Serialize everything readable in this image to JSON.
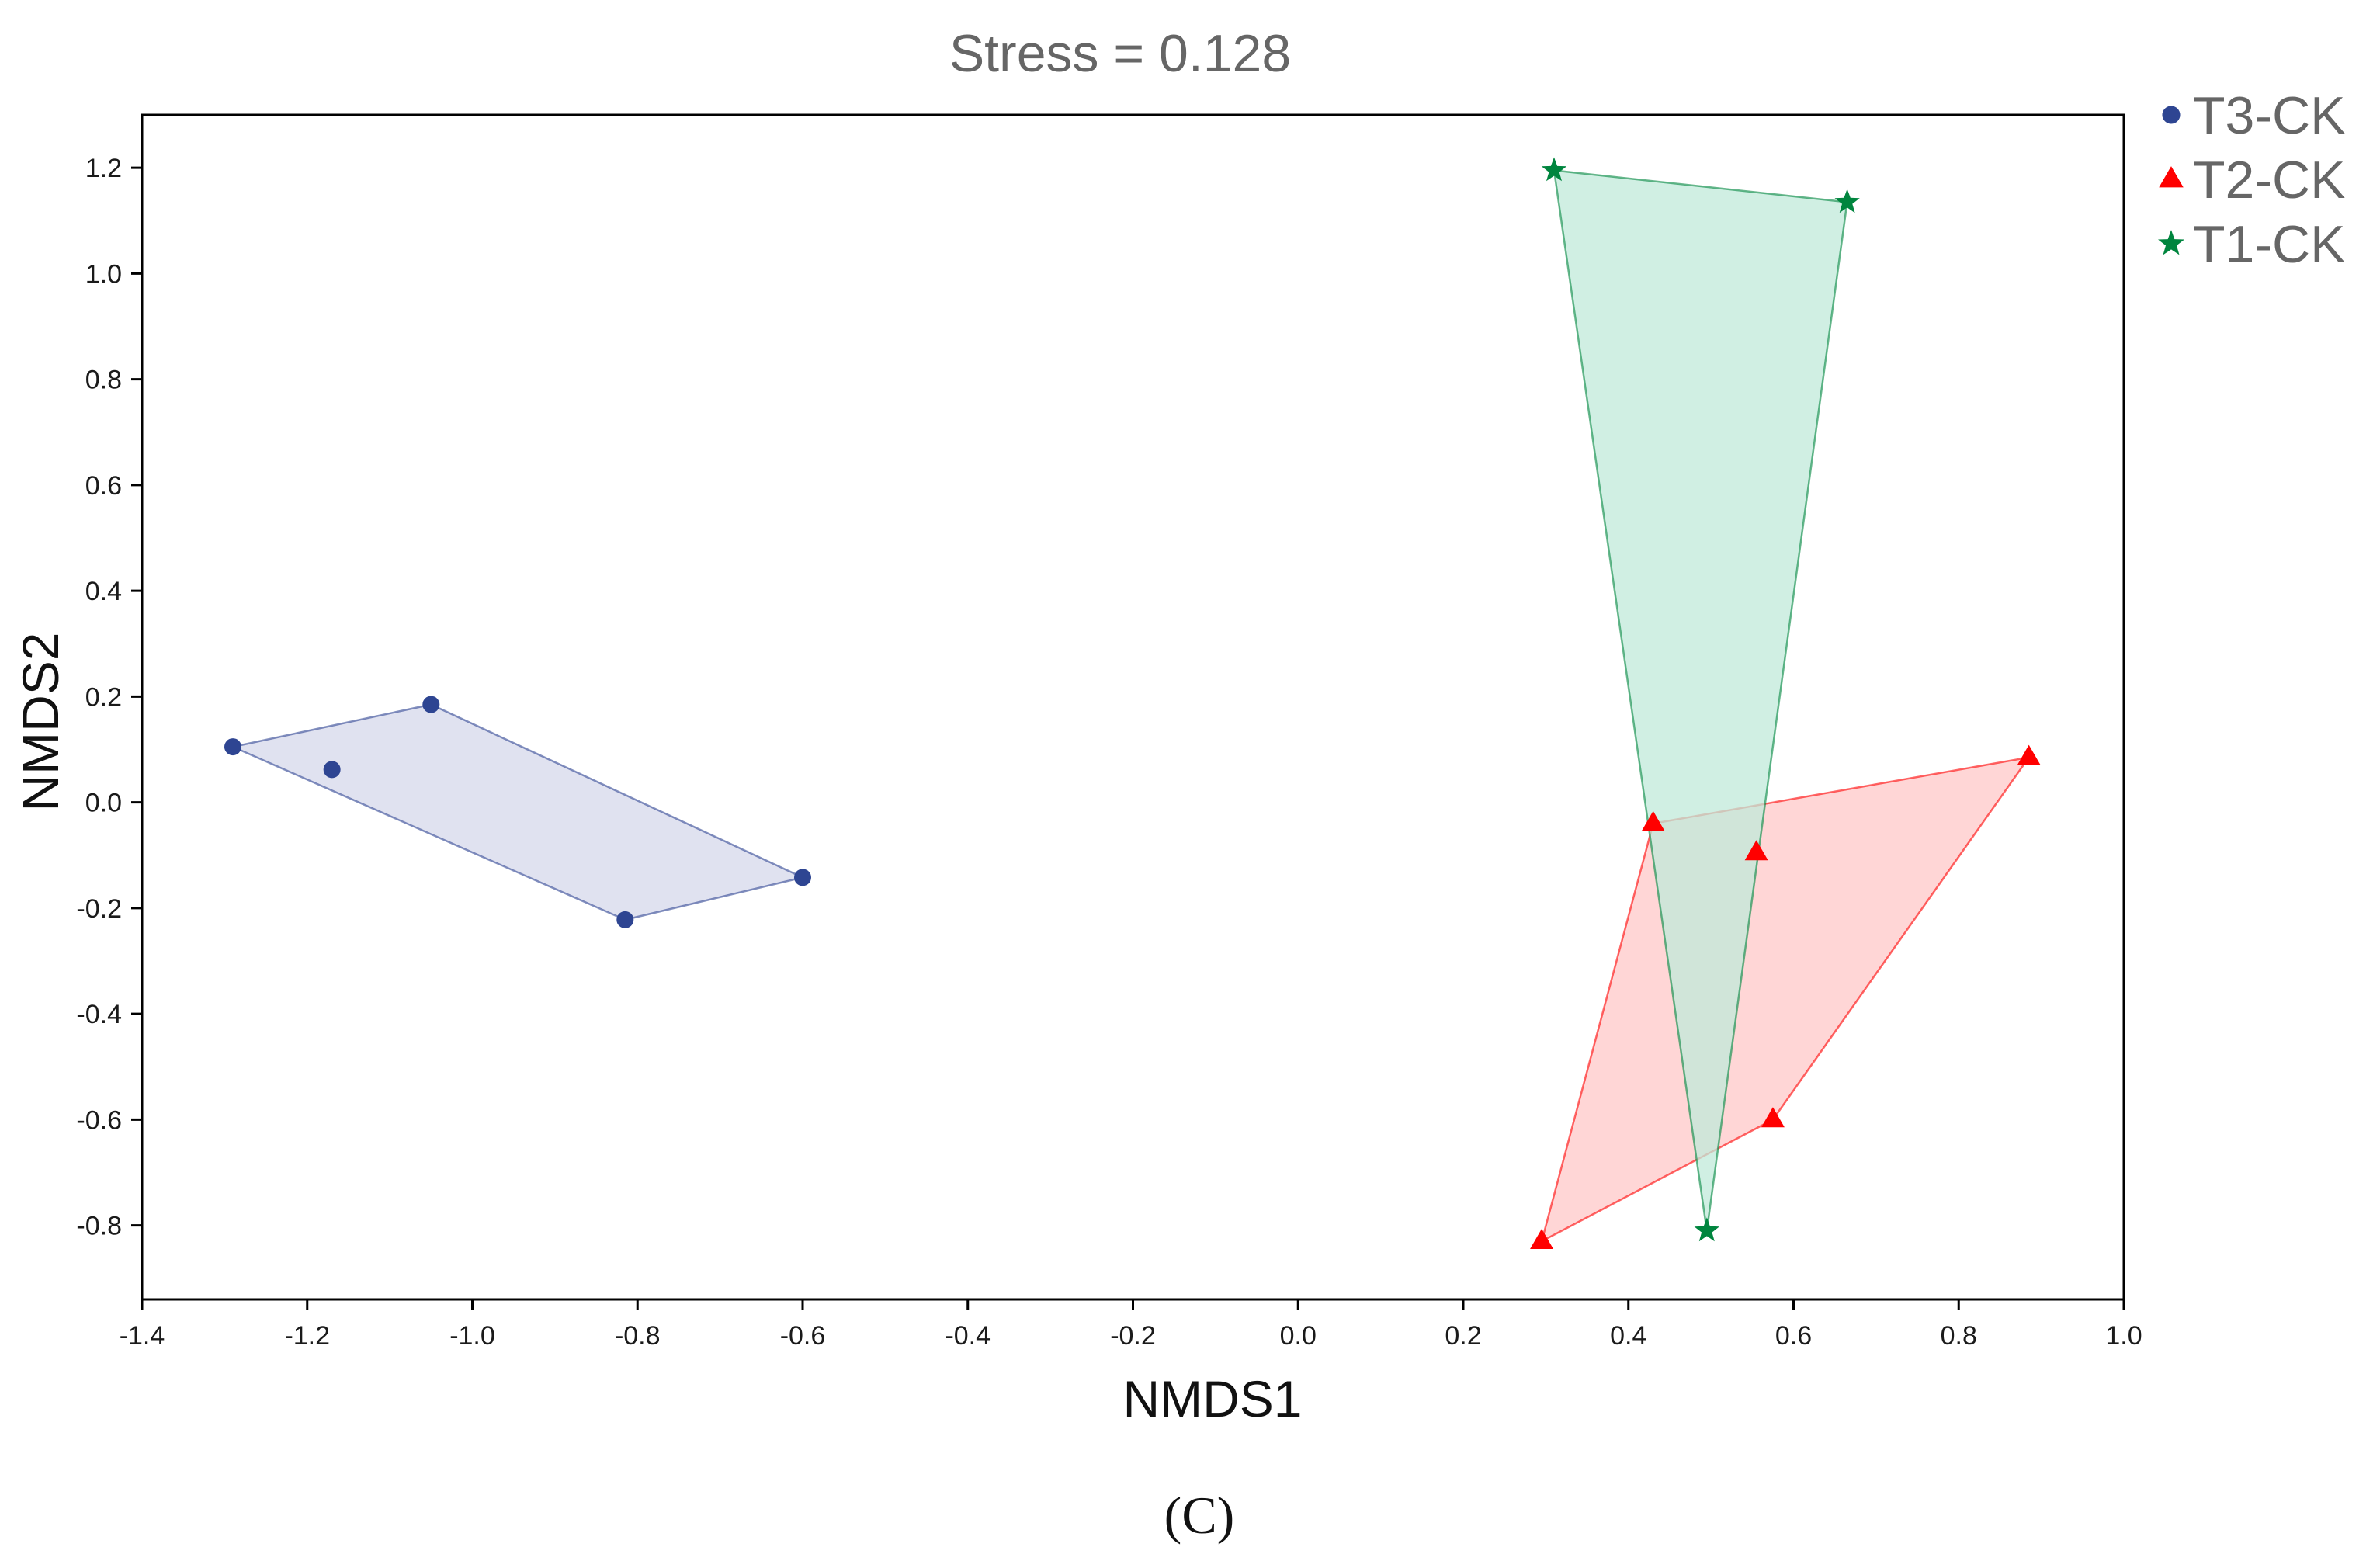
{
  "chart_data": {
    "type": "scatter",
    "title": "Stress = 0.128",
    "xlabel": "NMDS1",
    "ylabel": "NMDS2",
    "xlim": [
      -1.4,
      1.0
    ],
    "ylim": [
      -0.94,
      1.3
    ],
    "xticks": [
      -1.4,
      -1.2,
      -1.0,
      -0.8,
      -0.6,
      -0.4,
      -0.2,
      0.0,
      0.2,
      0.4,
      0.6,
      0.8,
      1.0
    ],
    "xtick_labels": [
      "-1.4",
      "-1.2",
      "-1.0",
      "-0.8",
      "-0.6",
      "-0.4",
      "-0.2",
      "0.0",
      "0.2",
      "0.4",
      "0.6",
      "0.8",
      "1.0"
    ],
    "yticks": [
      -0.8,
      -0.6,
      -0.4,
      -0.2,
      0.0,
      0.2,
      0.4,
      0.6,
      0.8,
      1.0,
      1.2
    ],
    "ytick_labels": [
      "-0.8",
      "-0.6",
      "-0.4",
      "-0.2",
      "0.0",
      "0.2",
      "0.4",
      "0.6",
      "0.8",
      "1.0",
      "1.2"
    ],
    "grid": false,
    "legend_position": "top-right outside",
    "series": [
      {
        "name": "T3-CK",
        "marker": "circle",
        "color": "#2E4592",
        "fill": "#D6D8EB",
        "points": [
          [
            -1.29,
            0.105
          ],
          [
            -1.17,
            0.062
          ],
          [
            -1.05,
            0.185
          ],
          [
            -0.6,
            -0.142
          ],
          [
            -0.815,
            -0.222
          ]
        ],
        "hull": [
          [
            -1.29,
            0.105
          ],
          [
            -1.05,
            0.185
          ],
          [
            -0.6,
            -0.142
          ],
          [
            -0.815,
            -0.222
          ]
        ]
      },
      {
        "name": "T2-CK",
        "marker": "triangle",
        "color": "#FF0000",
        "fill": "#FFC8C8",
        "points": [
          [
            0.885,
            0.085
          ],
          [
            0.43,
            -0.04
          ],
          [
            0.555,
            -0.095
          ],
          [
            0.575,
            -0.6
          ],
          [
            0.295,
            -0.83
          ]
        ],
        "hull": [
          [
            0.885,
            0.085
          ],
          [
            0.43,
            -0.04
          ],
          [
            0.295,
            -0.83
          ],
          [
            0.575,
            -0.6
          ]
        ]
      },
      {
        "name": "T1-CK",
        "marker": "star",
        "color": "#00853E",
        "fill": "#C0E9DA",
        "points": [
          [
            0.31,
            1.195
          ],
          [
            0.665,
            1.135
          ],
          [
            0.495,
            -0.81
          ]
        ],
        "hull": [
          [
            0.31,
            1.195
          ],
          [
            0.665,
            1.135
          ],
          [
            0.495,
            -0.81
          ]
        ]
      }
    ],
    "panel_label": "(C)"
  }
}
